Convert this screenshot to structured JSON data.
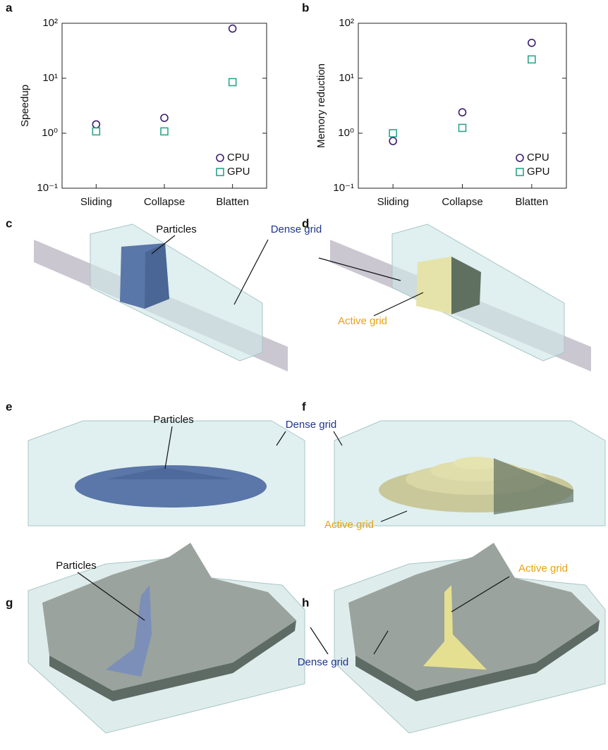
{
  "chart_data": [
    {
      "type": "scatter",
      "panel": "a",
      "y_label": "Speedup",
      "log_y": true,
      "categories": [
        "Sliding",
        "Collapse",
        "Blatten"
      ],
      "series": [
        {
          "name": "CPU",
          "color": "#3d1e6d",
          "marker": "circle",
          "values": [
            1.45,
            1.9,
            80
          ]
        },
        {
          "name": "GPU",
          "color": "#2ba58b",
          "marker": "square",
          "values": [
            1.08,
            1.08,
            8.5
          ]
        }
      ],
      "ylim": [
        0.1,
        100
      ],
      "yticks": [
        {
          "value": 0.1,
          "label": "10⁻¹"
        },
        {
          "value": 1,
          "label": "10⁰"
        },
        {
          "value": 10,
          "label": "10¹"
        },
        {
          "value": 100,
          "label": "10²"
        }
      ],
      "legend": "lower right"
    },
    {
      "type": "scatter",
      "panel": "b",
      "y_label": "Memory reduction",
      "log_y": true,
      "categories": [
        "Sliding",
        "Collapse",
        "Blatten"
      ],
      "series": [
        {
          "name": "CPU",
          "color": "#3d1e6d",
          "marker": "circle",
          "values": [
            0.72,
            2.4,
            44
          ]
        },
        {
          "name": "GPU",
          "color": "#2ba58b",
          "marker": "square",
          "values": [
            1.0,
            1.25,
            22
          ]
        }
      ],
      "ylim": [
        0.1,
        100
      ],
      "yticks": [
        {
          "value": 0.1,
          "label": "10⁻¹"
        },
        {
          "value": 1,
          "label": "10⁰"
        },
        {
          "value": 10,
          "label": "10¹"
        },
        {
          "value": 100,
          "label": "10²"
        }
      ],
      "legend": "lower right"
    }
  ],
  "illustrations": {
    "panels": [
      "c",
      "d",
      "e",
      "f",
      "g",
      "h"
    ],
    "annotations": [
      {
        "text": "Particles"
      },
      {
        "text": "Dense grid"
      },
      {
        "text": "Active grid"
      },
      {
        "text": "Particles"
      },
      {
        "text": "Dense grid"
      },
      {
        "text": "Active grid"
      },
      {
        "text": "Particles"
      },
      {
        "text": "Active grid"
      },
      {
        "text": "Dense grid"
      }
    ]
  }
}
